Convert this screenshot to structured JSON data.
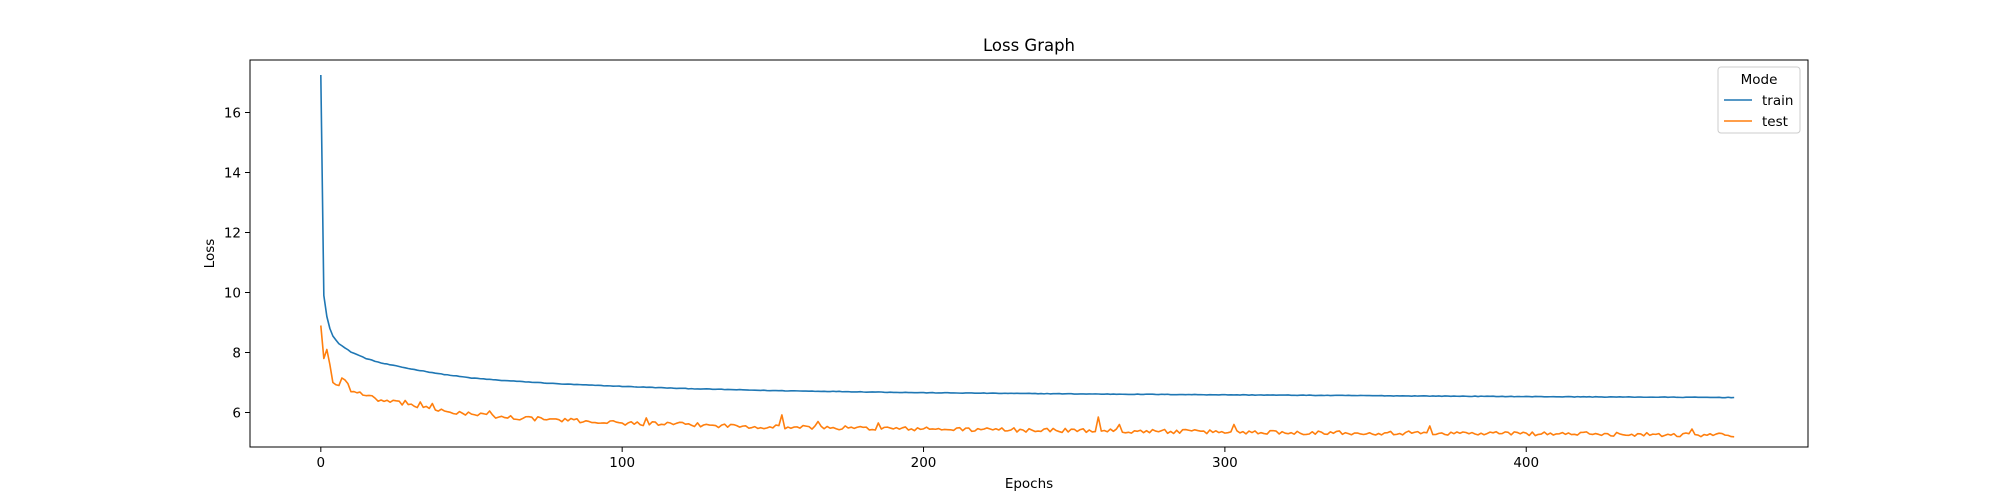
{
  "chart_data": {
    "type": "line",
    "title": "Loss Graph",
    "xlabel": "Epochs",
    "ylabel": "Loss",
    "xlim": [
      -23.5,
      493.5
    ],
    "ylim": [
      4.85,
      17.75
    ],
    "x_ticks": [
      0,
      100,
      200,
      300,
      400
    ],
    "x_tick_labels": [
      "0",
      "100",
      "200",
      "300",
      "400"
    ],
    "y_ticks": [
      6,
      8,
      10,
      12,
      14,
      16
    ],
    "y_tick_labels": [
      "6",
      "8",
      "10",
      "12",
      "14",
      "16"
    ],
    "grid": false,
    "legend": {
      "title": "Mode",
      "position": "top-right"
    },
    "epochs": 470,
    "series": [
      {
        "name": "train",
        "color": "#1f77b4",
        "anchors": [
          [
            0,
            17.25
          ],
          [
            1,
            9.9
          ],
          [
            2,
            9.2
          ],
          [
            3,
            8.8
          ],
          [
            4,
            8.55
          ],
          [
            6,
            8.3
          ],
          [
            8,
            8.15
          ],
          [
            10,
            8.02
          ],
          [
            15,
            7.8
          ],
          [
            20,
            7.65
          ],
          [
            30,
            7.45
          ],
          [
            40,
            7.28
          ],
          [
            50,
            7.15
          ],
          [
            60,
            7.07
          ],
          [
            80,
            6.95
          ],
          [
            100,
            6.87
          ],
          [
            120,
            6.8
          ],
          [
            150,
            6.73
          ],
          [
            200,
            6.66
          ],
          [
            250,
            6.62
          ],
          [
            300,
            6.59
          ],
          [
            350,
            6.56
          ],
          [
            400,
            6.53
          ],
          [
            469,
            6.5
          ]
        ],
        "noise": 0.008
      },
      {
        "name": "test",
        "color": "#ff7f0e",
        "anchors": [
          [
            0,
            8.9
          ],
          [
            1,
            7.8
          ],
          [
            2,
            8.1
          ],
          [
            3,
            7.6
          ],
          [
            4,
            7.0
          ],
          [
            6,
            6.9
          ],
          [
            8,
            7.1
          ],
          [
            10,
            6.75
          ],
          [
            15,
            6.55
          ],
          [
            20,
            6.4
          ],
          [
            30,
            6.25
          ],
          [
            40,
            6.05
          ],
          [
            50,
            5.95
          ],
          [
            60,
            5.85
          ],
          [
            80,
            5.75
          ],
          [
            100,
            5.65
          ],
          [
            120,
            5.6
          ],
          [
            150,
            5.52
          ],
          [
            200,
            5.45
          ],
          [
            250,
            5.4
          ],
          [
            300,
            5.35
          ],
          [
            350,
            5.32
          ],
          [
            400,
            5.3
          ],
          [
            469,
            5.25
          ]
        ],
        "noise": 0.05,
        "spikes": [
          [
            7,
            7.15
          ],
          [
            28,
            6.4
          ],
          [
            33,
            6.35
          ],
          [
            37,
            6.3
          ],
          [
            56,
            6.05
          ],
          [
            108,
            5.82
          ],
          [
            153,
            5.92
          ],
          [
            165,
            5.7
          ],
          [
            185,
            5.65
          ],
          [
            258,
            5.85
          ],
          [
            265,
            5.6
          ],
          [
            303,
            5.6
          ],
          [
            368,
            5.55
          ],
          [
            455,
            5.45
          ]
        ]
      }
    ]
  }
}
